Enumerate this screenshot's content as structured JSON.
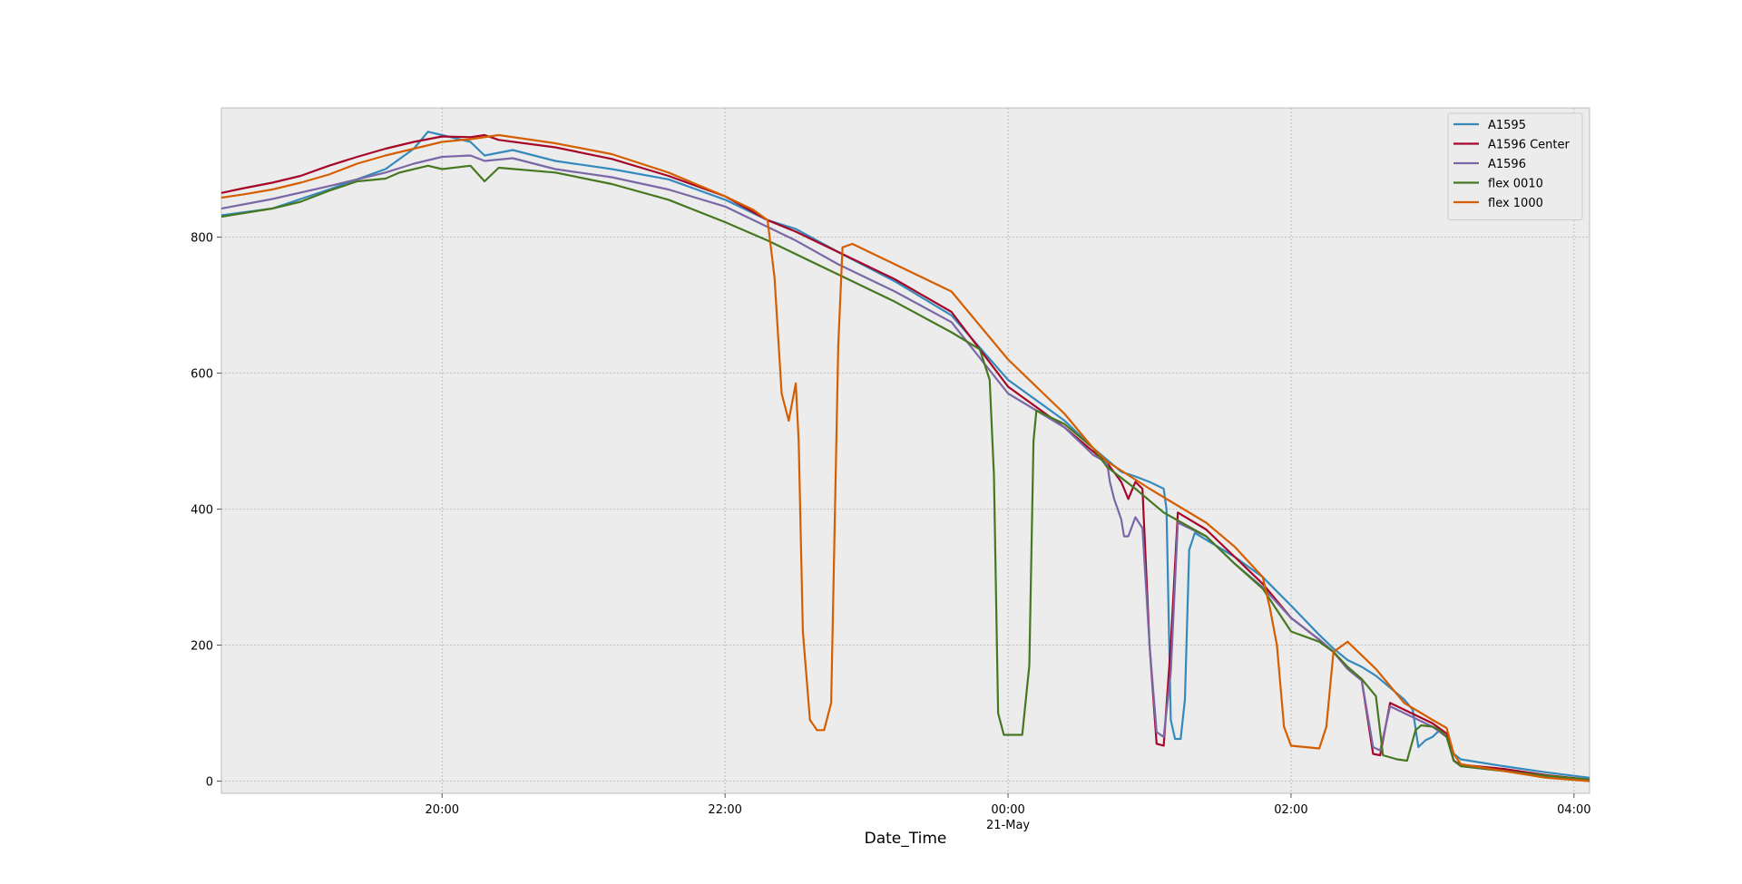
{
  "chart_data": {
    "type": "line",
    "title": "",
    "xlabel": "Date_Time",
    "ylabel": "",
    "x_unit": "time of day (hours, 20.0 = 20:00 on 20-May; 24.0 = 00:00 on 21-May)",
    "xlim": [
      18.44,
      28.11
    ],
    "ylim": [
      -18,
      990
    ],
    "x_ticks": [
      {
        "value": 20,
        "label": "20:00",
        "sublabel": ""
      },
      {
        "value": 22,
        "label": "22:00",
        "sublabel": ""
      },
      {
        "value": 24,
        "label": "00:00",
        "sublabel": "21-May"
      },
      {
        "value": 26,
        "label": "02:00",
        "sublabel": ""
      },
      {
        "value": 28,
        "label": "04:00",
        "sublabel": ""
      }
    ],
    "y_ticks": [
      {
        "value": 0,
        "label": "0"
      },
      {
        "value": 200,
        "label": "200"
      },
      {
        "value": 400,
        "label": "400"
      },
      {
        "value": 600,
        "label": "600"
      },
      {
        "value": 800,
        "label": "800"
      }
    ],
    "grid": true,
    "legend_position": "top-right",
    "background": "#ececec",
    "series": [
      {
        "name": "A1595",
        "color": "#348abd",
        "points": [
          [
            18.44,
            832
          ],
          [
            18.8,
            842
          ],
          [
            19.2,
            870
          ],
          [
            19.6,
            900
          ],
          [
            19.8,
            930
          ],
          [
            19.9,
            955
          ],
          [
            20.0,
            950
          ],
          [
            20.2,
            940
          ],
          [
            20.3,
            920
          ],
          [
            20.5,
            928
          ],
          [
            20.8,
            912
          ],
          [
            21.2,
            900
          ],
          [
            21.6,
            885
          ],
          [
            22.0,
            855
          ],
          [
            22.3,
            825
          ],
          [
            22.5,
            812
          ],
          [
            22.8,
            778
          ],
          [
            23.2,
            735
          ],
          [
            23.6,
            685
          ],
          [
            24.0,
            590
          ],
          [
            24.4,
            530
          ],
          [
            24.6,
            490
          ],
          [
            24.8,
            455
          ],
          [
            24.9,
            448
          ],
          [
            25.0,
            440
          ],
          [
            25.1,
            430
          ],
          [
            25.12,
            400
          ],
          [
            25.15,
            90
          ],
          [
            25.18,
            62
          ],
          [
            25.22,
            62
          ],
          [
            25.25,
            120
          ],
          [
            25.28,
            340
          ],
          [
            25.32,
            365
          ],
          [
            25.6,
            330
          ],
          [
            25.8,
            300
          ],
          [
            26.0,
            258
          ],
          [
            26.2,
            215
          ],
          [
            26.3,
            195
          ],
          [
            26.4,
            178
          ],
          [
            26.5,
            168
          ],
          [
            26.6,
            155
          ],
          [
            26.8,
            120
          ],
          [
            26.86,
            105
          ],
          [
            26.9,
            50
          ],
          [
            26.95,
            60
          ],
          [
            27.0,
            65
          ],
          [
            27.05,
            75
          ],
          [
            27.1,
            65
          ],
          [
            27.15,
            40
          ],
          [
            27.2,
            32
          ],
          [
            27.5,
            22
          ],
          [
            27.8,
            13
          ],
          [
            28.11,
            5
          ]
        ]
      },
      {
        "name": "A1596 Center",
        "color": "#a60628",
        "points": [
          [
            18.44,
            865
          ],
          [
            18.6,
            872
          ],
          [
            18.8,
            880
          ],
          [
            19.0,
            890
          ],
          [
            19.2,
            905
          ],
          [
            19.4,
            918
          ],
          [
            19.6,
            930
          ],
          [
            19.8,
            940
          ],
          [
            20.0,
            948
          ],
          [
            20.2,
            947
          ],
          [
            20.3,
            950
          ],
          [
            20.4,
            943
          ],
          [
            20.8,
            932
          ],
          [
            21.2,
            915
          ],
          [
            21.6,
            890
          ],
          [
            22.0,
            860
          ],
          [
            22.3,
            825
          ],
          [
            22.5,
            808
          ],
          [
            22.8,
            778
          ],
          [
            23.2,
            738
          ],
          [
            23.6,
            690
          ],
          [
            24.0,
            580
          ],
          [
            24.4,
            520
          ],
          [
            24.6,
            485
          ],
          [
            24.7,
            468
          ],
          [
            24.8,
            440
          ],
          [
            24.85,
            415
          ],
          [
            24.9,
            440
          ],
          [
            24.95,
            430
          ],
          [
            25.0,
            200
          ],
          [
            25.05,
            55
          ],
          [
            25.1,
            52
          ],
          [
            25.15,
            200
          ],
          [
            25.2,
            395
          ],
          [
            25.4,
            370
          ],
          [
            25.6,
            330
          ],
          [
            25.8,
            290
          ],
          [
            26.0,
            240
          ],
          [
            26.2,
            208
          ],
          [
            26.3,
            190
          ],
          [
            26.4,
            165
          ],
          [
            26.5,
            148
          ],
          [
            26.58,
            40
          ],
          [
            26.63,
            38
          ],
          [
            26.7,
            115
          ],
          [
            26.8,
            105
          ],
          [
            27.0,
            85
          ],
          [
            27.1,
            70
          ],
          [
            27.15,
            30
          ],
          [
            27.2,
            24
          ],
          [
            27.5,
            18
          ],
          [
            27.8,
            9
          ],
          [
            28.11,
            2
          ]
        ]
      },
      {
        "name": "A1596",
        "color": "#7a68a6",
        "points": [
          [
            18.44,
            842
          ],
          [
            18.8,
            856
          ],
          [
            19.2,
            875
          ],
          [
            19.6,
            895
          ],
          [
            19.8,
            908
          ],
          [
            20.0,
            918
          ],
          [
            20.2,
            920
          ],
          [
            20.3,
            912
          ],
          [
            20.5,
            916
          ],
          [
            20.8,
            900
          ],
          [
            21.2,
            888
          ],
          [
            21.6,
            870
          ],
          [
            22.0,
            845
          ],
          [
            22.3,
            815
          ],
          [
            22.5,
            795
          ],
          [
            22.8,
            760
          ],
          [
            23.2,
            720
          ],
          [
            23.6,
            675
          ],
          [
            24.0,
            570
          ],
          [
            24.4,
            520
          ],
          [
            24.6,
            480
          ],
          [
            24.7,
            468
          ],
          [
            24.72,
            440
          ],
          [
            24.75,
            415
          ],
          [
            24.8,
            385
          ],
          [
            24.82,
            360
          ],
          [
            24.85,
            360
          ],
          [
            24.9,
            388
          ],
          [
            24.95,
            372
          ],
          [
            25.0,
            200
          ],
          [
            25.05,
            72
          ],
          [
            25.1,
            65
          ],
          [
            25.15,
            160
          ],
          [
            25.2,
            380
          ],
          [
            25.4,
            360
          ],
          [
            25.6,
            320
          ],
          [
            25.8,
            285
          ],
          [
            26.0,
            240
          ],
          [
            26.2,
            208
          ],
          [
            26.3,
            190
          ],
          [
            26.4,
            165
          ],
          [
            26.5,
            148
          ],
          [
            26.58,
            50
          ],
          [
            26.63,
            45
          ],
          [
            26.7,
            110
          ],
          [
            26.8,
            100
          ],
          [
            27.0,
            80
          ],
          [
            27.1,
            65
          ],
          [
            27.15,
            30
          ],
          [
            27.2,
            22
          ],
          [
            27.5,
            15
          ],
          [
            27.8,
            7
          ],
          [
            28.11,
            0
          ]
        ]
      },
      {
        "name": "flex 0010",
        "color": "#467821",
        "points": [
          [
            18.44,
            830
          ],
          [
            18.8,
            842
          ],
          [
            19.0,
            852
          ],
          [
            19.2,
            868
          ],
          [
            19.4,
            882
          ],
          [
            19.6,
            886
          ],
          [
            19.7,
            895
          ],
          [
            19.9,
            905
          ],
          [
            20.0,
            900
          ],
          [
            20.2,
            905
          ],
          [
            20.3,
            882
          ],
          [
            20.4,
            902
          ],
          [
            20.8,
            895
          ],
          [
            21.2,
            878
          ],
          [
            21.6,
            855
          ],
          [
            22.0,
            822
          ],
          [
            22.3,
            795
          ],
          [
            22.5,
            775
          ],
          [
            22.8,
            745
          ],
          [
            23.2,
            705
          ],
          [
            23.6,
            660
          ],
          [
            23.8,
            635
          ],
          [
            23.87,
            590
          ],
          [
            23.9,
            450
          ],
          [
            23.93,
            100
          ],
          [
            23.97,
            68
          ],
          [
            24.1,
            68
          ],
          [
            24.15,
            170
          ],
          [
            24.18,
            500
          ],
          [
            24.2,
            545
          ],
          [
            24.4,
            525
          ],
          [
            24.6,
            490
          ],
          [
            24.7,
            462
          ],
          [
            24.9,
            430
          ],
          [
            25.1,
            395
          ],
          [
            25.4,
            360
          ],
          [
            25.6,
            320
          ],
          [
            25.8,
            283
          ],
          [
            26.0,
            220
          ],
          [
            26.2,
            205
          ],
          [
            26.3,
            190
          ],
          [
            26.4,
            168
          ],
          [
            26.5,
            150
          ],
          [
            26.6,
            125
          ],
          [
            26.65,
            38
          ],
          [
            26.75,
            32
          ],
          [
            26.82,
            30
          ],
          [
            26.88,
            75
          ],
          [
            26.92,
            82
          ],
          [
            27.0,
            80
          ],
          [
            27.05,
            75
          ],
          [
            27.1,
            65
          ],
          [
            27.15,
            30
          ],
          [
            27.2,
            22
          ],
          [
            27.5,
            15
          ],
          [
            27.8,
            8
          ],
          [
            28.11,
            2
          ]
        ]
      },
      {
        "name": "flex 1000",
        "color": "#d55e00",
        "points": [
          [
            18.44,
            858
          ],
          [
            18.6,
            863
          ],
          [
            18.8,
            870
          ],
          [
            19.0,
            880
          ],
          [
            19.2,
            892
          ],
          [
            19.4,
            908
          ],
          [
            19.6,
            920
          ],
          [
            19.8,
            930
          ],
          [
            20.0,
            940
          ],
          [
            20.2,
            944
          ],
          [
            20.4,
            950
          ],
          [
            20.8,
            938
          ],
          [
            21.2,
            922
          ],
          [
            21.6,
            895
          ],
          [
            22.0,
            860
          ],
          [
            22.2,
            840
          ],
          [
            22.3,
            825
          ],
          [
            22.35,
            740
          ],
          [
            22.4,
            570
          ],
          [
            22.45,
            530
          ],
          [
            22.5,
            585
          ],
          [
            22.52,
            500
          ],
          [
            22.55,
            220
          ],
          [
            22.6,
            90
          ],
          [
            22.65,
            75
          ],
          [
            22.7,
            75
          ],
          [
            22.75,
            115
          ],
          [
            22.8,
            640
          ],
          [
            22.83,
            785
          ],
          [
            22.9,
            790
          ],
          [
            23.2,
            760
          ],
          [
            23.6,
            720
          ],
          [
            24.0,
            620
          ],
          [
            24.4,
            540
          ],
          [
            24.6,
            490
          ],
          [
            24.7,
            470
          ],
          [
            25.0,
            430
          ],
          [
            25.4,
            380
          ],
          [
            25.6,
            345
          ],
          [
            25.8,
            300
          ],
          [
            25.85,
            255
          ],
          [
            25.9,
            200
          ],
          [
            25.95,
            80
          ],
          [
            26.0,
            52
          ],
          [
            26.2,
            48
          ],
          [
            26.25,
            80
          ],
          [
            26.3,
            190
          ],
          [
            26.4,
            205
          ],
          [
            26.6,
            165
          ],
          [
            26.8,
            115
          ],
          [
            27.0,
            90
          ],
          [
            27.1,
            78
          ],
          [
            27.15,
            40
          ],
          [
            27.2,
            25
          ],
          [
            27.5,
            15
          ],
          [
            27.8,
            5
          ],
          [
            28.11,
            0
          ]
        ]
      }
    ]
  }
}
